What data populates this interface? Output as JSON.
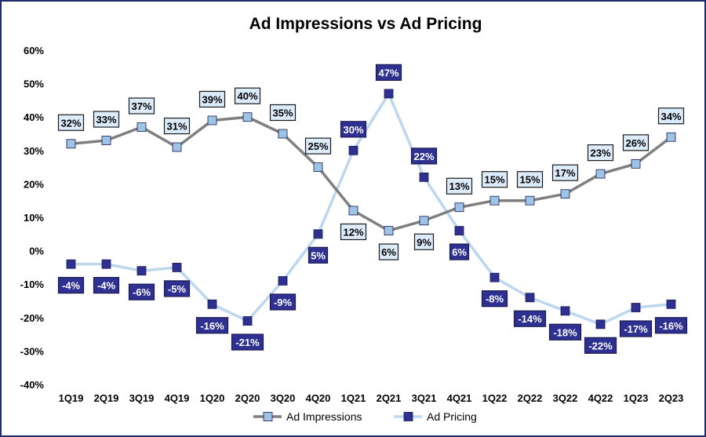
{
  "chart_data": {
    "type": "line",
    "title": "Ad Impressions vs Ad Pricing",
    "xlabel": "",
    "ylabel": "",
    "ylim": [
      -40,
      60
    ],
    "y_ticks": [
      "-40%",
      "-30%",
      "-20%",
      "-10%",
      "0%",
      "10%",
      "20%",
      "30%",
      "40%",
      "50%",
      "60%"
    ],
    "y_tick_values": [
      -40,
      -30,
      -20,
      -10,
      0,
      10,
      20,
      30,
      40,
      50,
      60
    ],
    "grid": false,
    "legend_position": "bottom",
    "categories": [
      "1Q19",
      "2Q19",
      "3Q19",
      "4Q19",
      "1Q20",
      "2Q20",
      "3Q20",
      "4Q20",
      "1Q21",
      "2Q21",
      "3Q21",
      "4Q21",
      "1Q22",
      "2Q22",
      "3Q22",
      "4Q22",
      "1Q23",
      "2Q23"
    ],
    "series": [
      {
        "name": "Ad Impressions",
        "color": "#7f7f7f",
        "marker_color": "#9dc3e6",
        "values": [
          32,
          33,
          37,
          31,
          39,
          40,
          35,
          25,
          12,
          6,
          9,
          13,
          15,
          15,
          17,
          23,
          26,
          34
        ],
        "labels": [
          "32%",
          "33%",
          "37%",
          "31%",
          "39%",
          "40%",
          "35%",
          "25%",
          "12%",
          "6%",
          "9%",
          "13%",
          "15%",
          "15%",
          "17%",
          "23%",
          "26%",
          "34%"
        ]
      },
      {
        "name": "Ad Pricing",
        "color": "#bdd7ee",
        "marker_color": "#2e3192",
        "values": [
          -4,
          -4,
          -6,
          -5,
          -16,
          -21,
          -9,
          5,
          30,
          47,
          22,
          6,
          -8,
          -14,
          -18,
          -22,
          -17,
          -16
        ],
        "labels": [
          "-4%",
          "-4%",
          "-6%",
          "-5%",
          "-16%",
          "-21%",
          "-9%",
          "5%",
          "30%",
          "47%",
          "22%",
          "6%",
          "-8%",
          "-14%",
          "-18%",
          "-22%",
          "-17%",
          "-16%"
        ]
      }
    ]
  }
}
